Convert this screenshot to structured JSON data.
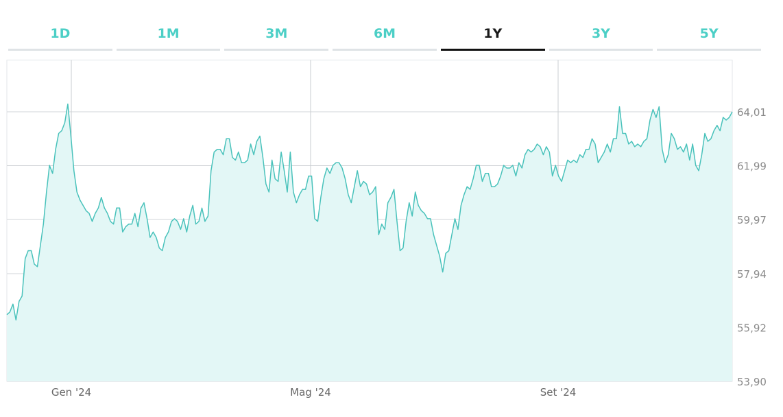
{
  "range_tabs": {
    "items": [
      {
        "label": "1D",
        "name": "tab-1d"
      },
      {
        "label": "1M",
        "name": "tab-1m"
      },
      {
        "label": "3M",
        "name": "tab-3m"
      },
      {
        "label": "6M",
        "name": "tab-6m"
      },
      {
        "label": "1Y",
        "name": "tab-1y",
        "active": true
      },
      {
        "label": "3Y",
        "name": "tab-3y"
      },
      {
        "label": "5Y",
        "name": "tab-5y"
      }
    ],
    "accent_color": "#4ccfc6",
    "active_color": "#111111"
  },
  "chart_data": {
    "type": "area",
    "x_tick_labels": [
      "Gen '24",
      "Mag '24",
      "Set '24"
    ],
    "y_tick_labels": [
      "64,01",
      "61,99",
      "59,97",
      "57,94",
      "55,92",
      "53,90"
    ],
    "y_ticks": [
      64.01,
      61.99,
      59.97,
      57.94,
      55.92,
      53.9
    ],
    "ylim": [
      53.9,
      65.95
    ],
    "grid": true,
    "line_color": "#49c2bb",
    "fill_color": "#e3f7f6",
    "series": [
      {
        "values": [
          56.4,
          56.5,
          56.8,
          56.2,
          56.9,
          57.1,
          58.5,
          58.8,
          58.8,
          58.3,
          58.2,
          59.0,
          59.8,
          61.0,
          62.0,
          61.7,
          62.6,
          63.2,
          63.3,
          63.6,
          64.3,
          63.1,
          61.8,
          61.0,
          60.7,
          60.5,
          60.3,
          60.2,
          59.9,
          60.2,
          60.4,
          60.8,
          60.4,
          60.2,
          59.9,
          59.8,
          60.4,
          60.4,
          59.5,
          59.7,
          59.8,
          59.8,
          60.2,
          59.7,
          60.4,
          60.6,
          60.0,
          59.3,
          59.5,
          59.3,
          58.9,
          58.8,
          59.3,
          59.5,
          59.9,
          60.0,
          59.9,
          59.6,
          60.0,
          59.5,
          60.1,
          60.5,
          59.8,
          59.9,
          60.4,
          59.9,
          60.1,
          61.8,
          62.5,
          62.6,
          62.6,
          62.4,
          63.0,
          63.0,
          62.3,
          62.2,
          62.5,
          62.1,
          62.1,
          62.2,
          62.8,
          62.4,
          62.9,
          63.1,
          62.3,
          61.3,
          61.0,
          62.2,
          61.5,
          61.4,
          62.5,
          61.8,
          61.0,
          62.5,
          61.0,
          60.6,
          60.9,
          61.1,
          61.1,
          61.6,
          61.6,
          60.0,
          59.9,
          60.8,
          61.5,
          61.9,
          61.7,
          62.0,
          62.1,
          62.1,
          61.9,
          61.5,
          60.9,
          60.6,
          61.2,
          61.8,
          61.2,
          61.4,
          61.3,
          60.9,
          61.0,
          61.2,
          59.4,
          59.8,
          59.6,
          60.6,
          60.8,
          61.1,
          59.9,
          58.8,
          58.9,
          59.9,
          60.6,
          60.1,
          61.0,
          60.5,
          60.3,
          60.2,
          60.0,
          60.0,
          59.4,
          59.0,
          58.6,
          58.0,
          58.7,
          58.8,
          59.4,
          60.0,
          59.6,
          60.5,
          60.9,
          61.2,
          61.1,
          61.5,
          62.0,
          62.0,
          61.4,
          61.7,
          61.7,
          61.2,
          61.2,
          61.3,
          61.6,
          62.0,
          61.9,
          61.9,
          62.0,
          61.6,
          62.1,
          61.9,
          62.4,
          62.6,
          62.5,
          62.6,
          62.8,
          62.7,
          62.4,
          62.7,
          62.5,
          61.6,
          62.0,
          61.6,
          61.4,
          61.8,
          62.2,
          62.1,
          62.2,
          62.1,
          62.4,
          62.3,
          62.6,
          62.6,
          63.0,
          62.8,
          62.1,
          62.3,
          62.5,
          62.8,
          62.5,
          63.0,
          63.0,
          64.2,
          63.2,
          63.2,
          62.8,
          62.9,
          62.7,
          62.8,
          62.7,
          62.9,
          63.0,
          63.7,
          64.1,
          63.8,
          64.2,
          62.6,
          62.1,
          62.4,
          63.2,
          63.0,
          62.6,
          62.7,
          62.5,
          62.8,
          62.2,
          62.8,
          62.0,
          61.8,
          62.4,
          63.2,
          62.9,
          63.0,
          63.3,
          63.5,
          63.3,
          63.8,
          63.7,
          63.8,
          64.01
        ]
      }
    ]
  }
}
